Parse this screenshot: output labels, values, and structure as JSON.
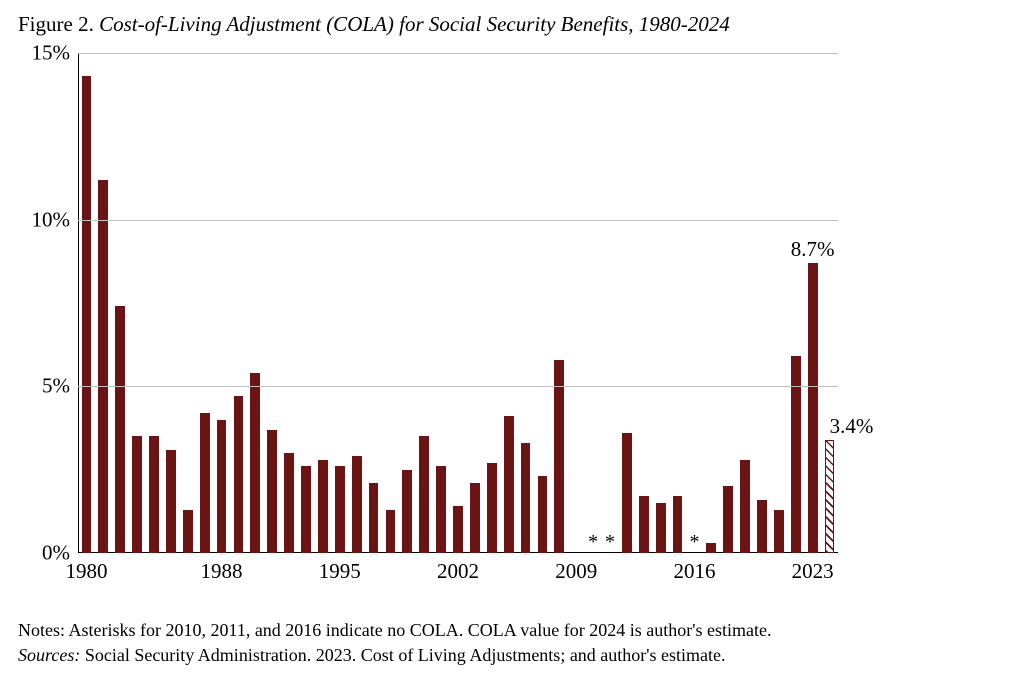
{
  "title_lead": "Figure 2. ",
  "title_body": "Cost-of-Living Adjustment (COLA) for Social Security Benefits, 1980-2024",
  "notes_line1": "Notes: Asterisks for 2010, 2011, and 2016 indicate no COLA.  COLA value for 2024 is author's estimate.",
  "sources_lead": "Sources: ",
  "sources_body": "Social Security Administration. 2023. Cost of Living Adjustments; and author's estimate.",
  "chart": {
    "type": "bar",
    "background_color": "#ffffff",
    "grid_color": "#bfbfbf",
    "axis_color": "#000000",
    "bar_color": "#6a1414",
    "ylim": [
      0,
      15
    ],
    "ytick_step": 5,
    "yticks": [
      {
        "v": 0,
        "label": "0%"
      },
      {
        "v": 5,
        "label": "5%"
      },
      {
        "v": 10,
        "label": "10%"
      },
      {
        "v": 15,
        "label": "15%"
      }
    ],
    "xticks": [
      1980,
      1988,
      1995,
      2002,
      2009,
      2016,
      2023
    ],
    "bar_width_ratio": 0.58,
    "label_fontsize": 21,
    "annotations": [
      {
        "year": 2023,
        "text": "8.7%",
        "above": true
      },
      {
        "year": 2024,
        "text": "3.4%",
        "above": true,
        "shift_right": true
      }
    ],
    "asterisk_years": [
      2010,
      2011,
      2016
    ],
    "asterisk_glyph": "*",
    "data": [
      {
        "year": 1980,
        "value": 14.3
      },
      {
        "year": 1981,
        "value": 11.2
      },
      {
        "year": 1982,
        "value": 7.4
      },
      {
        "year": 1983,
        "value": 3.5
      },
      {
        "year": 1984,
        "value": 3.5
      },
      {
        "year": 1985,
        "value": 3.1
      },
      {
        "year": 1986,
        "value": 1.3
      },
      {
        "year": 1987,
        "value": 4.2
      },
      {
        "year": 1988,
        "value": 4.0
      },
      {
        "year": 1989,
        "value": 4.7
      },
      {
        "year": 1990,
        "value": 5.4
      },
      {
        "year": 1991,
        "value": 3.7
      },
      {
        "year": 1992,
        "value": 3.0
      },
      {
        "year": 1993,
        "value": 2.6
      },
      {
        "year": 1994,
        "value": 2.8
      },
      {
        "year": 1995,
        "value": 2.6
      },
      {
        "year": 1996,
        "value": 2.9
      },
      {
        "year": 1997,
        "value": 2.1
      },
      {
        "year": 1998,
        "value": 1.3
      },
      {
        "year": 1999,
        "value": 2.5
      },
      {
        "year": 2000,
        "value": 3.5
      },
      {
        "year": 2001,
        "value": 2.6
      },
      {
        "year": 2002,
        "value": 1.4
      },
      {
        "year": 2003,
        "value": 2.1
      },
      {
        "year": 2004,
        "value": 2.7
      },
      {
        "year": 2005,
        "value": 4.1
      },
      {
        "year": 2006,
        "value": 3.3
      },
      {
        "year": 2007,
        "value": 2.3
      },
      {
        "year": 2008,
        "value": 5.8
      },
      {
        "year": 2009,
        "value": 0.0
      },
      {
        "year": 2010,
        "value": 0.0
      },
      {
        "year": 2011,
        "value": 0.0
      },
      {
        "year": 2012,
        "value": 3.6
      },
      {
        "year": 2013,
        "value": 1.7
      },
      {
        "year": 2014,
        "value": 1.5
      },
      {
        "year": 2015,
        "value": 1.7
      },
      {
        "year": 2016,
        "value": 0.0
      },
      {
        "year": 2017,
        "value": 0.3
      },
      {
        "year": 2018,
        "value": 2.0
      },
      {
        "year": 2019,
        "value": 2.8
      },
      {
        "year": 2020,
        "value": 1.6
      },
      {
        "year": 2021,
        "value": 1.3
      },
      {
        "year": 2022,
        "value": 5.9
      },
      {
        "year": 2023,
        "value": 8.7
      },
      {
        "year": 2024,
        "value": 3.4,
        "pattern": true
      }
    ]
  }
}
